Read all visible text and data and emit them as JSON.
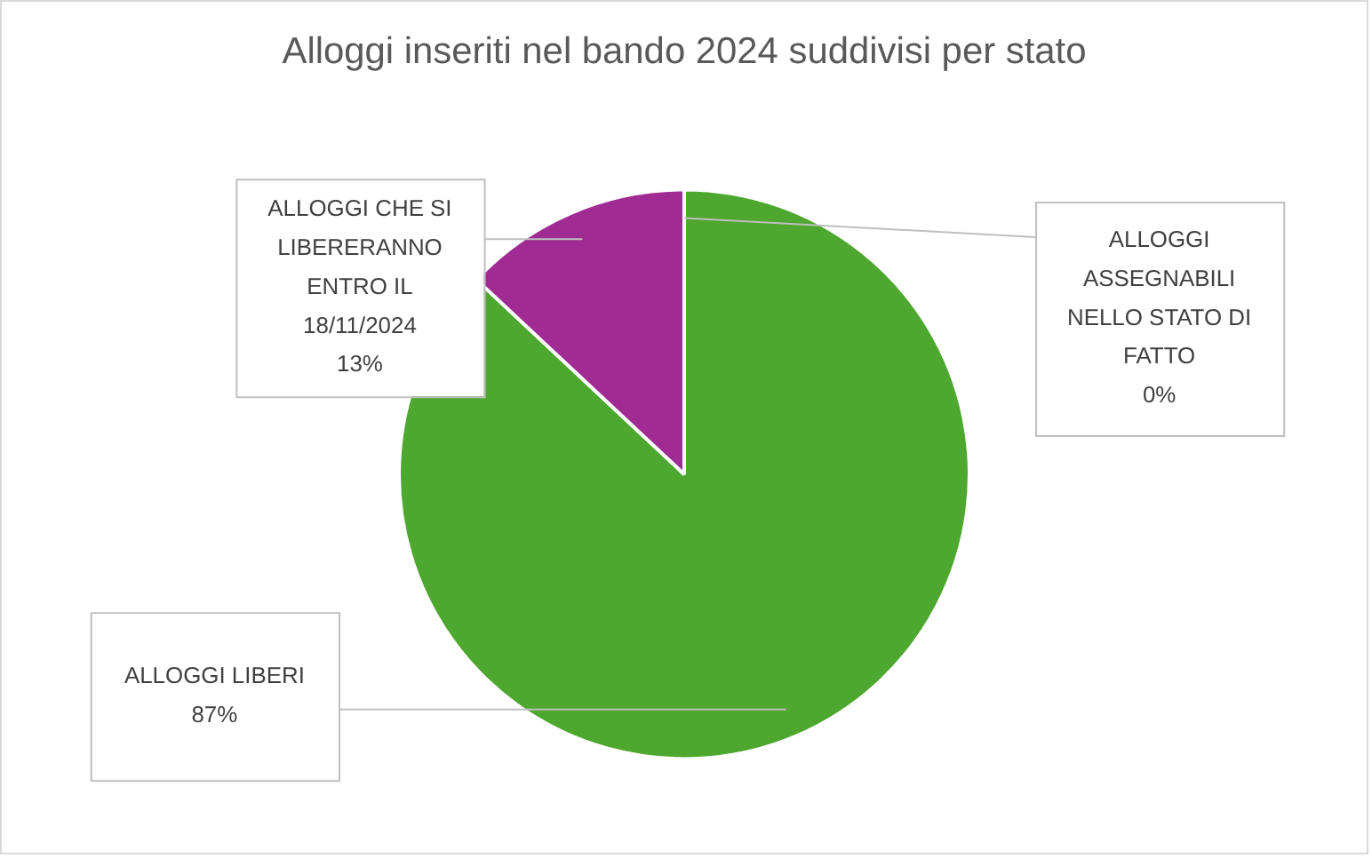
{
  "chart_data": {
    "type": "pie",
    "title": "Alloggi inseriti nel bando 2024 suddivisi per stato",
    "categories": [
      "ALLOGGI ASSEGNABILI NELLO STATO DI FATTO",
      "ALLOGGI LIBERI",
      "ALLOGGI CHE SI LIBERERANNO ENTRO IL 18/11/2024"
    ],
    "values": [
      0,
      87,
      13
    ],
    "colors": [
      "#4472c4",
      "#4ea72e",
      "#a02b93"
    ],
    "value_labels": [
      "0%",
      "87%",
      "13%"
    ],
    "legend": false
  }
}
